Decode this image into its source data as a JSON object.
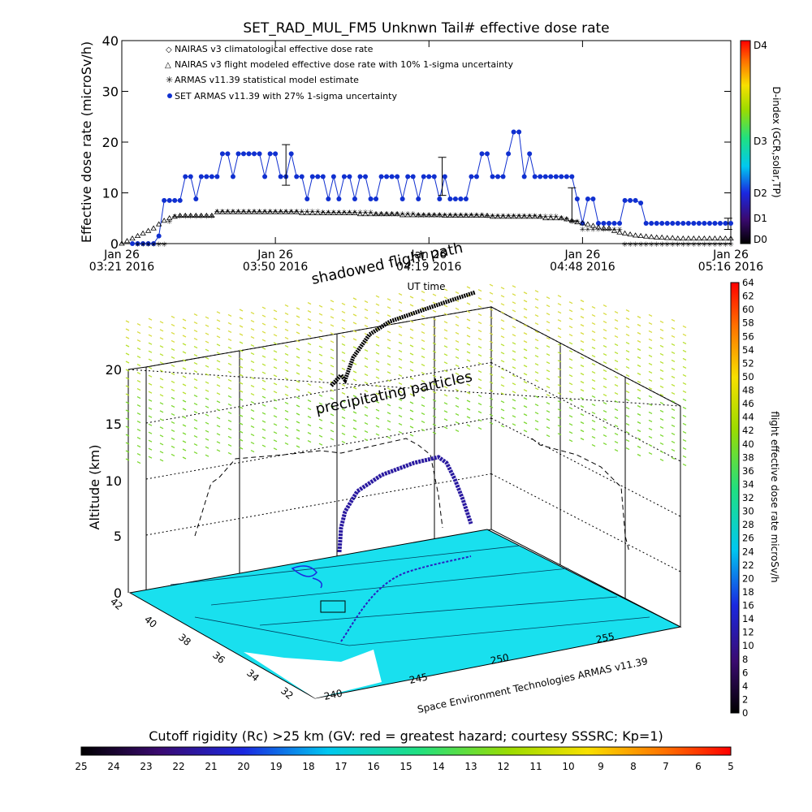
{
  "chart_data": [
    {
      "type": "line",
      "title": "SET_RAD_MUL_FM5 Unknwn Tail#  effective dose rate",
      "xlabel": "UT time",
      "ylabel": "Effective dose rate (microSv/h)",
      "ylim": [
        0,
        40
      ],
      "yticks": [
        "0",
        "10",
        "20",
        "30",
        "40"
      ],
      "xlim_minutes": [
        0,
        115
      ],
      "xticks": [
        {
          "minute": 0,
          "line1": "Jan 26",
          "line2": "03:21 2016"
        },
        {
          "minute": 29,
          "line1": "Jan 26",
          "line2": "03:50 2016"
        },
        {
          "minute": 58,
          "line1": "Jan 26",
          "line2": "04:19 2016"
        },
        {
          "minute": 87,
          "line1": "Jan 26",
          "line2": "04:48 2016"
        },
        {
          "minute": 115,
          "line1": "Jan 26",
          "line2": "05:16 2016"
        }
      ],
      "legend_position": "top-left",
      "legend": [
        {
          "label": "NAIRAS v3 climatological effective dose rate",
          "marker": "diamond",
          "color": "#e03030"
        },
        {
          "label": "NAIRAS v3 flight modeled effective dose rate with 10% 1-sigma uncertainty",
          "marker": "triangle",
          "color": "#000000"
        },
        {
          "label": "ARMAS v11.39 statistical model estimate",
          "marker": "asterisk",
          "color": "#33cc33"
        },
        {
          "label": "SET ARMAS v11.39 with 27% 1-sigma uncertainty",
          "marker": "dot",
          "color": "#1030d0"
        }
      ],
      "series": [
        {
          "name": "SET ARMAS v11.39 with 27% 1-sigma uncertainty",
          "color": "#1030d0",
          "x": [
            2,
            3,
            4,
            5,
            6,
            7,
            8,
            9,
            10,
            11,
            12,
            13,
            14,
            15,
            16,
            17,
            18,
            19,
            20,
            21,
            22,
            23,
            24,
            25,
            26,
            27,
            28,
            29,
            30,
            31,
            32,
            33,
            34,
            35,
            36,
            37,
            38,
            39,
            40,
            41,
            42,
            43,
            44,
            45,
            46,
            47,
            48,
            49,
            50,
            51,
            52,
            53,
            54,
            55,
            56,
            57,
            58,
            59,
            60,
            61,
            62,
            63,
            64,
            65,
            66,
            67,
            68,
            69,
            70,
            71,
            72,
            73,
            74,
            75,
            76,
            77,
            78,
            79,
            80,
            81,
            82,
            83,
            84,
            85,
            86,
            87,
            88,
            89,
            90,
            91,
            92,
            93,
            94,
            95,
            96,
            97,
            98,
            99,
            100,
            101,
            102,
            103,
            104,
            105,
            106,
            107,
            108,
            109,
            110,
            111,
            112,
            113,
            114,
            115
          ],
          "y": [
            0,
            0,
            0,
            0,
            0,
            1.5,
            8.5,
            8.5,
            8.5,
            8.5,
            13.2,
            13.2,
            8.8,
            13.2,
            13.2,
            13.2,
            13.2,
            17.7,
            17.7,
            13.2,
            17.7,
            17.7,
            17.7,
            17.7,
            17.7,
            13.2,
            17.7,
            17.7,
            13.2,
            13.2,
            17.7,
            13.2,
            13.2,
            8.8,
            13.2,
            13.2,
            13.2,
            8.8,
            13.2,
            8.8,
            13.2,
            13.2,
            8.8,
            13.2,
            13.2,
            8.8,
            8.8,
            13.2,
            13.2,
            13.2,
            13.2,
            8.8,
            13.2,
            13.2,
            8.8,
            13.2,
            13.2,
            13.2,
            8.8,
            13.2,
            8.8,
            8.8,
            8.8,
            8.8,
            13.2,
            13.2,
            17.7,
            17.7,
            13.2,
            13.2,
            13.2,
            17.7,
            22.0,
            22.0,
            13.2,
            17.7,
            13.2,
            13.2,
            13.2,
            13.2,
            13.2,
            13.2,
            13.2,
            13.2,
            8.8,
            4.0,
            8.8,
            8.8,
            4.0,
            4.0,
            4.0,
            4.0,
            4.0,
            8.5,
            8.5,
            8.5,
            8.0,
            4.0,
            4.0,
            4.0,
            4.0,
            4.0,
            4.0,
            4.0,
            4.0,
            4.0,
            4.0,
            4.0,
            4.0,
            4.0,
            4.0,
            4.0,
            4.0,
            4.0
          ]
        },
        {
          "name": "NAIRAS v3 flight modeled effective dose rate with 10% 1-sigma uncertainty",
          "color": "#000000",
          "x": [
            0,
            1,
            2,
            3,
            4,
            5,
            6,
            7,
            8,
            9,
            10,
            11,
            12,
            13,
            14,
            15,
            16,
            17,
            18,
            19,
            20,
            21,
            22,
            23,
            24,
            25,
            26,
            27,
            28,
            29,
            30,
            31,
            32,
            33,
            34,
            35,
            36,
            37,
            38,
            39,
            40,
            41,
            42,
            43,
            44,
            45,
            46,
            47,
            48,
            49,
            50,
            51,
            52,
            53,
            54,
            55,
            56,
            57,
            58,
            59,
            60,
            61,
            62,
            63,
            64,
            65,
            66,
            67,
            68,
            69,
            70,
            71,
            72,
            73,
            74,
            75,
            76,
            77,
            78,
            79,
            80,
            81,
            82,
            83,
            84,
            85,
            86,
            87,
            88,
            89,
            90,
            91,
            92,
            93,
            94,
            95,
            96,
            97,
            98,
            99,
            100,
            101,
            102,
            103,
            104,
            105,
            106,
            107,
            108,
            109,
            110,
            111,
            112,
            113,
            114,
            115
          ],
          "y": [
            0,
            0.5,
            1,
            1.5,
            2,
            2.5,
            3,
            3.8,
            4.5,
            5,
            5.3,
            5.5,
            5.5,
            5.5,
            5.5,
            5.5,
            5.5,
            5.5,
            6.2,
            6.2,
            6.2,
            6.2,
            6.2,
            6.2,
            6.2,
            6.2,
            6.2,
            6.2,
            6.2,
            6.2,
            6.2,
            6.2,
            6.2,
            6.2,
            6.0,
            6.0,
            6.0,
            6.0,
            6.0,
            6.0,
            6.0,
            6.0,
            6.0,
            6.0,
            6.0,
            5.8,
            5.8,
            5.8,
            5.8,
            5.8,
            5.8,
            5.8,
            5.8,
            5.6,
            5.6,
            5.6,
            5.6,
            5.6,
            5.6,
            5.6,
            5.6,
            5.5,
            5.5,
            5.5,
            5.5,
            5.5,
            5.5,
            5.5,
            5.5,
            5.5,
            5.3,
            5.3,
            5.3,
            5.3,
            5.3,
            5.3,
            5.3,
            5.3,
            5.3,
            5.3,
            5.0,
            5.0,
            5.0,
            5.0,
            4.8,
            4.5,
            4.2,
            4.0,
            3.8,
            3.5,
            3.2,
            3.0,
            3.0,
            2.5,
            2.2,
            2.0,
            1.8,
            1.6,
            1.5,
            1.4,
            1.3,
            1.2,
            1.2,
            1.1,
            1.1,
            1.0,
            1.0,
            1.0,
            1.0,
            1.0,
            1.0,
            1.0,
            1.0,
            1.0,
            1.0,
            1.0
          ]
        },
        {
          "name": "ARMAS v11.39 statistical model estimate",
          "color": "#33cc33",
          "x": [
            3,
            4,
            5,
            6,
            7,
            8,
            9,
            10,
            11,
            12,
            13,
            14,
            15,
            16,
            17,
            18,
            19,
            20,
            21,
            22,
            23,
            24,
            25,
            26,
            27,
            28,
            29,
            30,
            31,
            32,
            33,
            34,
            35,
            36,
            37,
            38,
            39,
            40,
            41,
            42,
            43,
            44,
            45,
            46,
            47,
            48,
            49,
            50,
            51,
            52,
            53,
            54,
            55,
            56,
            57,
            58,
            59,
            60,
            61,
            62,
            63,
            64,
            65,
            66,
            67,
            68,
            69,
            70,
            71,
            72,
            73,
            74,
            75,
            76,
            77,
            78,
            79,
            80,
            81,
            82,
            83,
            84,
            85,
            86,
            87,
            88,
            89,
            90,
            91,
            92,
            93,
            94,
            95,
            96,
            97,
            98,
            99,
            100,
            101,
            102,
            103,
            104,
            105,
            106,
            107,
            108,
            109,
            110,
            111,
            112,
            113,
            114,
            115
          ],
          "y": [
            0,
            0,
            0,
            0,
            0,
            0,
            4.5,
            5.5,
            5.5,
            5.5,
            5.5,
            5.5,
            5.5,
            5.5,
            5.5,
            6.5,
            6.5,
            6.5,
            6.5,
            6.5,
            6.5,
            6.5,
            6.5,
            6.5,
            6.5,
            6.5,
            6.5,
            6.5,
            6.5,
            6.5,
            6.5,
            6.5,
            6.5,
            6.5,
            6.5,
            6.3,
            6.3,
            6.3,
            6.3,
            6.3,
            6.3,
            6.3,
            6.3,
            6.3,
            6.3,
            6.0,
            6.0,
            6.0,
            6.0,
            6.0,
            6.0,
            6.0,
            6.0,
            5.8,
            5.8,
            5.8,
            5.8,
            5.8,
            5.8,
            5.8,
            5.8,
            5.8,
            5.8,
            5.8,
            5.8,
            5.8,
            5.6,
            5.6,
            5.6,
            5.6,
            5.6,
            5.6,
            5.6,
            5.6,
            5.6,
            5.6,
            5.5,
            5.5,
            5.5,
            5.5,
            5.2,
            5.0,
            4.5,
            4.5,
            3.0,
            3.0,
            3.0,
            3.0,
            3.0,
            3.0,
            3.0,
            3.0,
            0,
            0,
            0,
            0,
            0,
            0,
            0,
            0,
            0,
            0,
            0,
            0,
            0,
            0,
            0,
            0,
            0,
            0,
            0,
            0,
            0
          ]
        }
      ],
      "error_bars": [
        {
          "x": 31,
          "y": 15.5,
          "low": 11.5,
          "high": 19.5
        },
        {
          "x": 60.5,
          "y": 13.2,
          "low": 9.5,
          "high": 17.0
        },
        {
          "x": 85,
          "y": 8.5,
          "low": 4.5,
          "high": 11.0
        },
        {
          "x": 114.5,
          "y": 4.0,
          "low": 2.8,
          "high": 5.0
        }
      ],
      "right_scale": {
        "label": "D-index (GCR,solar,TP)",
        "ticks": [
          "D0",
          "D1",
          "D2",
          "D3",
          "D4"
        ]
      }
    },
    {
      "type": "scatter",
      "zlabel": "Altitude (km)",
      "zticks": [
        "0",
        "5",
        "10",
        "15",
        "20"
      ],
      "lat_ticks": [
        "42",
        "40",
        "38",
        "36",
        "34",
        "32"
      ],
      "lon_ticks": [
        "240",
        "245",
        "250",
        "255"
      ],
      "annotations": [
        "shadowed flight path",
        "precipitating particles"
      ],
      "credit": "Space Environment Technologies ARMAS v11.39",
      "colorbar": {
        "label": "flight effective dose rate microSv/h",
        "ticks": [
          "0",
          "2",
          "4",
          "6",
          "8",
          "10",
          "12",
          "14",
          "16",
          "18",
          "20",
          "22",
          "24",
          "26",
          "28",
          "30",
          "32",
          "34",
          "36",
          "38",
          "40",
          "42",
          "44",
          "46",
          "48",
          "50",
          "52",
          "54",
          "56",
          "58",
          "60",
          "62",
          "64"
        ]
      }
    }
  ],
  "bottom_colorbar": {
    "label": "Cutoff rigidity (Rc) >25 km (GV: red = greatest hazard; courtesy SSSRC; Kp=1)",
    "ticks": [
      "25",
      "24",
      "23",
      "22",
      "21",
      "20",
      "19",
      "18",
      "17",
      "16",
      "15",
      "14",
      "13",
      "12",
      "11",
      "10",
      "9",
      "8",
      "7",
      "6",
      "5"
    ]
  }
}
